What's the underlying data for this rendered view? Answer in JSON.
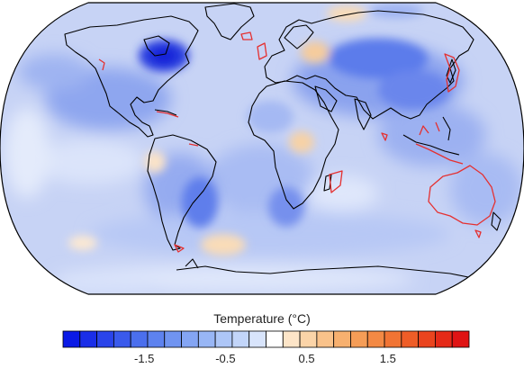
{
  "colorbar": {
    "title": "Temperature (°C)",
    "min": -2.5,
    "max": 2.5,
    "step": 0.25,
    "ticks": [
      -1.5,
      -0.5,
      0.5,
      1.5
    ],
    "tick_labels": [
      "-1.5",
      "-0.5",
      "0.5",
      "1.5"
    ],
    "colors": [
      "#0a1ae6",
      "#1a2ee8",
      "#2a44ea",
      "#3a5aec",
      "#4b6fee",
      "#5d82ef",
      "#7094f1",
      "#84a5f3",
      "#98b6f5",
      "#adc6f7",
      "#c2d5f9",
      "#d8e4fb",
      "#ffffff",
      "#fde5c8",
      "#fbd4a8",
      "#f9c28a",
      "#f7b06f",
      "#f59d57",
      "#f38944",
      "#f17434",
      "#ee5d27",
      "#ea441e",
      "#e52a18",
      "#df1414"
    ]
  },
  "map": {
    "projection": "robinson",
    "background_color": "#c9d6f6",
    "highlight_color": "#e53030"
  }
}
